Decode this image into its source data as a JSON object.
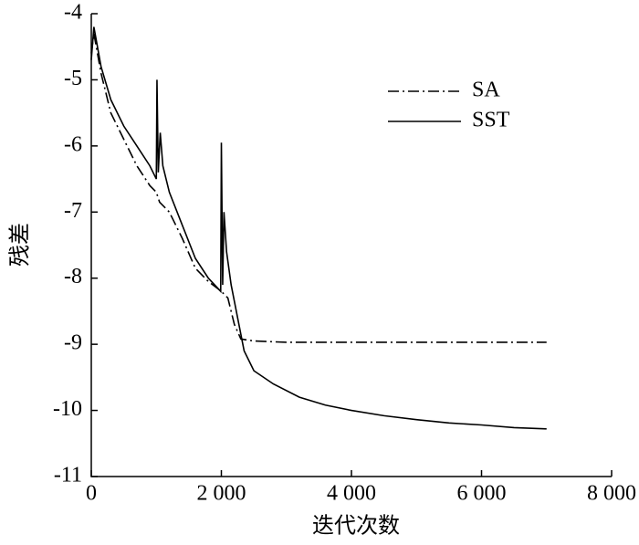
{
  "chart_data": {
    "type": "line",
    "xlabel": "迭代次数",
    "ylabel": "残差",
    "xlim": [
      0,
      8000
    ],
    "ylim": [
      -11,
      -4
    ],
    "xticks": [
      0,
      {
        "value": 2000,
        "label": "2 000"
      },
      {
        "value": 4000,
        "label": "4 000"
      },
      {
        "value": 6000,
        "label": "6 000"
      },
      {
        "value": 8000,
        "label": "8 000"
      }
    ],
    "yticks": [
      -11,
      -10,
      -9,
      -8,
      -7,
      -6,
      -5,
      -4
    ],
    "legend": "upper right",
    "series": [
      {
        "name": "SA",
        "color": "#000000",
        "linestyle": "dashdot",
        "x": [
          0,
          40,
          150,
          300,
          500,
          700,
          900,
          1000,
          1050,
          1200,
          1400,
          1600,
          1800,
          2000,
          2100,
          2200,
          2300,
          2500,
          3000,
          4000,
          5000,
          6000,
          7000
        ],
        "values": [
          -4.6,
          -4.3,
          -4.9,
          -5.5,
          -5.9,
          -6.3,
          -6.6,
          -6.7,
          -6.85,
          -7.0,
          -7.4,
          -7.85,
          -8.05,
          -8.2,
          -8.3,
          -8.7,
          -8.92,
          -8.95,
          -8.97,
          -8.97,
          -8.97,
          -8.97,
          -8.97
        ]
      },
      {
        "name": "SST",
        "color": "#000000",
        "linestyle": "solid",
        "x": [
          0,
          40,
          150,
          300,
          500,
          700,
          900,
          1000,
          1010,
          1030,
          1060,
          1100,
          1200,
          1400,
          1600,
          1800,
          1990,
          2000,
          2020,
          2040,
          2080,
          2150,
          2250,
          2350,
          2500,
          2800,
          3200,
          3600,
          4000,
          4500,
          5000,
          5500,
          6000,
          6500,
          7000
        ],
        "values": [
          -4.7,
          -4.2,
          -4.8,
          -5.3,
          -5.7,
          -6.0,
          -6.3,
          -6.5,
          -5.0,
          -6.4,
          -5.8,
          -6.3,
          -6.7,
          -7.2,
          -7.7,
          -8.0,
          -8.2,
          -5.95,
          -8.1,
          -7.0,
          -7.6,
          -8.1,
          -8.6,
          -9.1,
          -9.4,
          -9.6,
          -9.8,
          -9.92,
          -10.0,
          -10.08,
          -10.14,
          -10.19,
          -10.22,
          -10.26,
          -10.28
        ]
      }
    ]
  }
}
